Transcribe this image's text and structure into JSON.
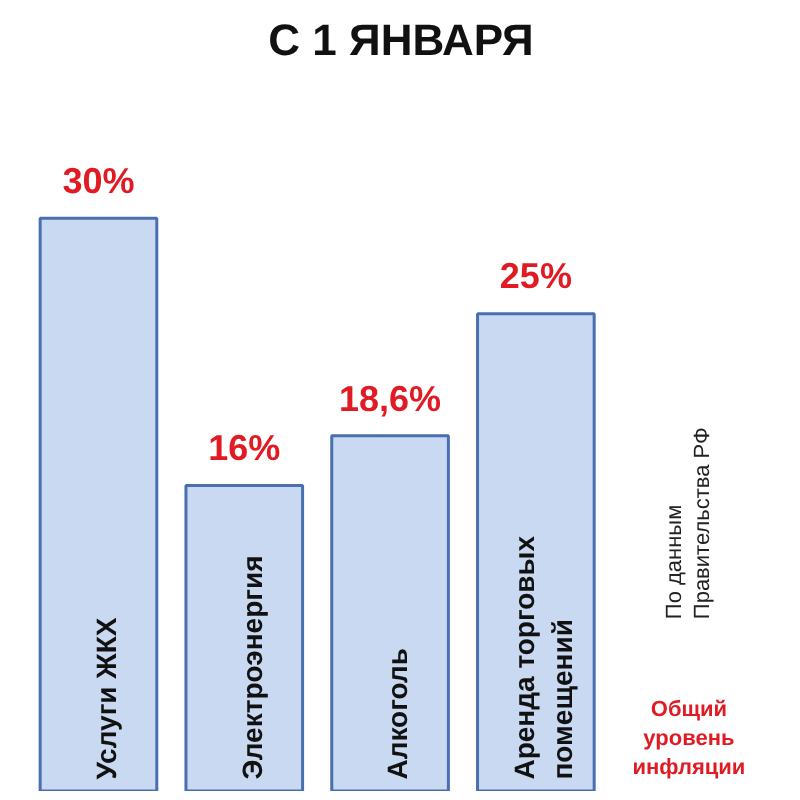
{
  "chart_data": {
    "type": "bar",
    "title": "С 1 ЯНВАРЯ",
    "categories": [
      "Услуги ЖКХ",
      "Электроэнергия",
      "Алкоголь",
      "Аренда торговых\nпомещений"
    ],
    "values": [
      30,
      16,
      18.6,
      25
    ],
    "value_labels": [
      "30%",
      "16%",
      "18,6%",
      "25%"
    ],
    "color": "#c9d9f2",
    "annotations": [
      "По данным\nПравительства РФ",
      "Общий\nуровень\nинфляции"
    ]
  }
}
